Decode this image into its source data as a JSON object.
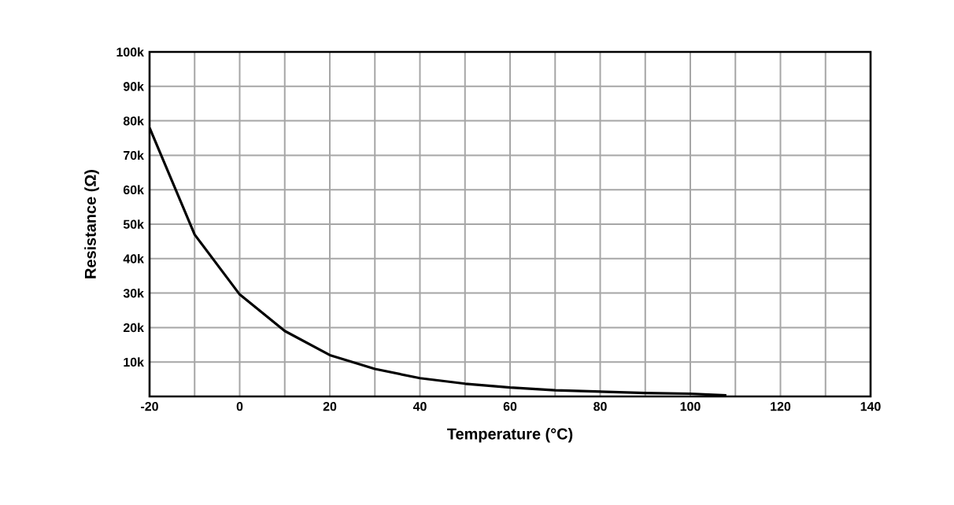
{
  "chart_data": {
    "type": "line",
    "xlabel": "Temperature (°C)",
    "ylabel": "Resistance (Ω)",
    "x": [
      -20,
      -10,
      0,
      10,
      20,
      30,
      40,
      50,
      60,
      70,
      80,
      90,
      100,
      108
    ],
    "series": [
      {
        "color": "#000000",
        "values": [
          78000,
          47000,
          29600,
          19000,
          12000,
          8000,
          5300,
          3700,
          2600,
          1800,
          1400,
          1000,
          800,
          300
        ]
      }
    ],
    "xlim": [
      -20,
      140
    ],
    "xticks": [
      -20,
      {
        "value": -10,
        "label": null
      },
      0,
      {
        "value": 10,
        "label": null
      },
      20,
      {
        "value": 30,
        "label": null
      },
      40,
      {
        "value": 50,
        "label": null
      },
      60,
      {
        "value": 70,
        "label": null
      },
      80,
      {
        "value": 90,
        "label": null
      },
      100,
      {
        "value": 110,
        "label": null
      },
      120,
      {
        "value": 130,
        "label": null
      },
      140
    ],
    "ylim": [
      0,
      100000
    ],
    "yticks": [
      {
        "value": 0,
        "label": null
      },
      {
        "value": 10000,
        "label": "10k"
      },
      {
        "value": 20000,
        "label": "20k"
      },
      {
        "value": 30000,
        "label": "30k"
      },
      {
        "value": 40000,
        "label": "40k"
      },
      {
        "value": 50000,
        "label": "50k"
      },
      {
        "value": 60000,
        "label": "60k"
      },
      {
        "value": 70000,
        "label": "70k"
      },
      {
        "value": 80000,
        "label": "80k"
      },
      {
        "value": 90000,
        "label": "90k"
      },
      {
        "value": 100000,
        "label": "100k"
      }
    ],
    "grid": true,
    "marker": "none",
    "line_style": "solid"
  }
}
